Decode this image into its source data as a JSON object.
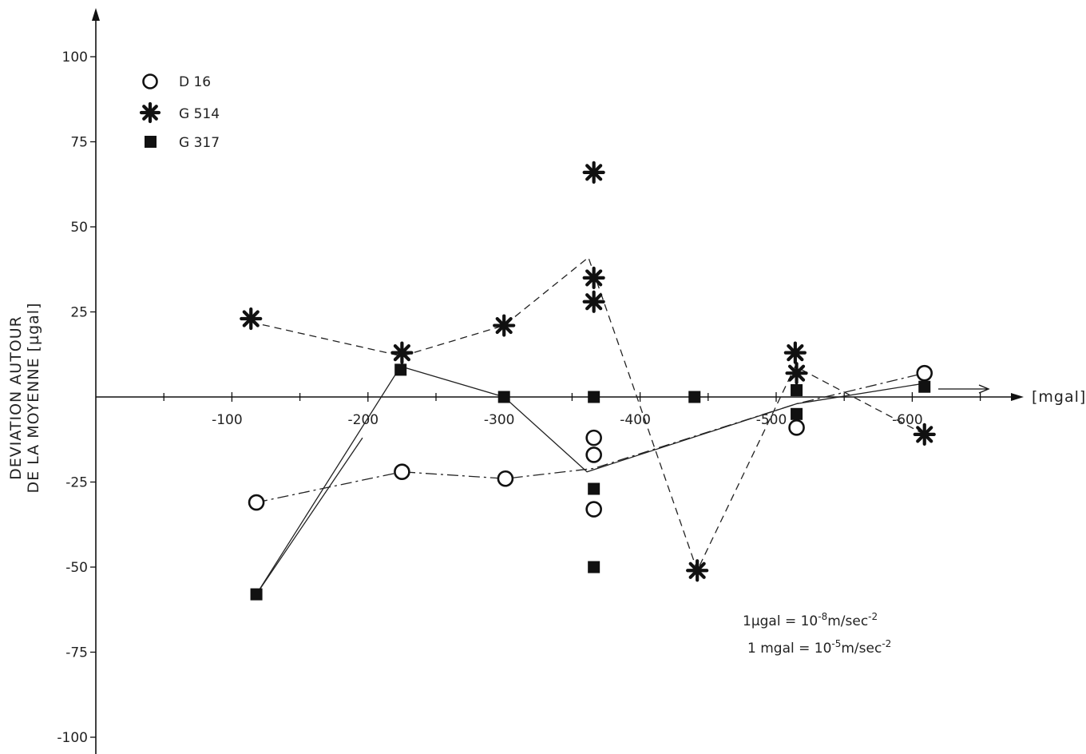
{
  "chart_data": {
    "type": "scatter",
    "xlabel": "[mgal]",
    "ylabel_line1": "DEVIATION AUTOUR",
    "ylabel_line2": "DE LA MOYENNE [µgal]",
    "xlim": [
      -600,
      0
    ],
    "ylim": [
      -100,
      100
    ],
    "x_direction": "decreasing-to-right",
    "x_ticks": [
      -100,
      -200,
      -300,
      -400,
      -500,
      -600
    ],
    "x_tick_labels": [
      "-100",
      "-200",
      "-300",
      "-400",
      "-500",
      "-600"
    ],
    "y_ticks": [
      100,
      75,
      50,
      25,
      -25,
      -50,
      -75,
      -100
    ],
    "y_tick_labels": [
      "100",
      "75",
      "50",
      "25",
      "-25",
      "-50",
      "-75",
      "-100"
    ],
    "grid": false,
    "legend_position": "top-left",
    "series": [
      {
        "name": "D 16",
        "marker": "open-circle",
        "line_style": "dash-dot",
        "points": [
          {
            "x": -118,
            "y": -31
          },
          {
            "x": -225,
            "y": -22
          },
          {
            "x": -301,
            "y": -24
          },
          {
            "x": -366,
            "y": -12
          },
          {
            "x": -366,
            "y": -17
          },
          {
            "x": -366,
            "y": -33
          },
          {
            "x": -515,
            "y": -9
          },
          {
            "x": -609,
            "y": 7
          }
        ],
        "mean_line": [
          {
            "x": -118,
            "y": -31
          },
          {
            "x": -225,
            "y": -22
          },
          {
            "x": -301,
            "y": -24
          },
          {
            "x": -366,
            "y": -21
          },
          {
            "x": -515,
            "y": -2
          },
          {
            "x": -609,
            "y": 7
          }
        ]
      },
      {
        "name": "G 514",
        "marker": "asterisk",
        "line_style": "dashed",
        "points": [
          {
            "x": -114,
            "y": 23
          },
          {
            "x": -225,
            "y": 13
          },
          {
            "x": -300,
            "y": 21
          },
          {
            "x": -366,
            "y": 66
          },
          {
            "x": -366,
            "y": 35
          },
          {
            "x": -366,
            "y": 28
          },
          {
            "x": -442,
            "y": -51
          },
          {
            "x": -514,
            "y": 13
          },
          {
            "x": -515,
            "y": 7
          },
          {
            "x": -609,
            "y": -11
          }
        ],
        "mean_line": [
          {
            "x": -114,
            "y": 22
          },
          {
            "x": -225,
            "y": 12
          },
          {
            "x": -300,
            "y": 21
          },
          {
            "x": -362,
            "y": 41
          },
          {
            "x": -442,
            "y": -51
          },
          {
            "x": -514,
            "y": 9
          },
          {
            "x": -609,
            "y": -11
          }
        ]
      },
      {
        "name": "G 317",
        "marker": "filled-square",
        "line_style": "solid",
        "points": [
          {
            "x": -118,
            "y": -58
          },
          {
            "x": -224,
            "y": 8
          },
          {
            "x": -300,
            "y": 0
          },
          {
            "x": -366,
            "y": 0
          },
          {
            "x": -366,
            "y": -27
          },
          {
            "x": -366,
            "y": -50
          },
          {
            "x": -440,
            "y": 0
          },
          {
            "x": -515,
            "y": 2
          },
          {
            "x": -515,
            "y": -5
          },
          {
            "x": -609,
            "y": 3
          }
        ],
        "mean_line": [
          {
            "x": -118,
            "y": -58
          },
          {
            "x": -224,
            "y": 9
          },
          {
            "x": -300,
            "y": 0
          },
          {
            "x": -361,
            "y": -22
          },
          {
            "x": -515,
            "y": -2
          },
          {
            "x": -609,
            "y": 4
          }
        ]
      }
    ],
    "extra_line": [
      {
        "x": -118,
        "y": -58
      },
      {
        "x": -196,
        "y": -12
      }
    ],
    "annotations": [
      {
        "prefix": "1µgal = 10",
        "sup1": "-8",
        "mid": "m/sec",
        "sup2": "-2"
      },
      {
        "prefix": "1 mgal = 10",
        "sup1": "-5",
        "mid": "m/sec",
        "sup2": "-2"
      }
    ]
  }
}
